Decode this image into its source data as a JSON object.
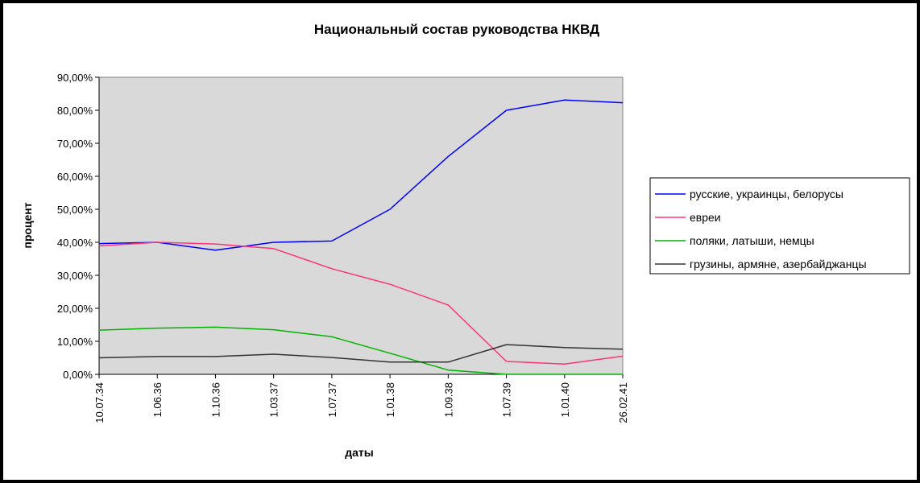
{
  "chart_data": {
    "type": "line",
    "title": "Национальный состав руководства НКВД",
    "xlabel": "даты",
    "ylabel": "процент",
    "categories": [
      "10.07.34",
      "1.06.36",
      "1.10.36",
      "1.03.37",
      "1.07.37",
      "1.01.38",
      "1.09.38",
      "1.07.39",
      "1.01.40",
      "26.02.41"
    ],
    "y_ticks": [
      "0,00%",
      "10,00%",
      "20,00%",
      "30,00%",
      "40,00%",
      "50,00%",
      "60,00%",
      "70,00%",
      "80,00%",
      "90,00%"
    ],
    "ylim": [
      0,
      90
    ],
    "y_unit": "%",
    "grid": false,
    "legend_position": "right",
    "plot_background": "#d9d9d9",
    "series": [
      {
        "name": "русские, украинцы, белорусы",
        "color": "#0000ff",
        "values": [
          39.6,
          40.0,
          37.6,
          40.0,
          40.4,
          50.0,
          66.0,
          80.0,
          83.1,
          82.3
        ]
      },
      {
        "name": "евреи",
        "color": "#ff3377",
        "values": [
          38.9,
          40.0,
          39.5,
          38.1,
          32.0,
          27.3,
          21.0,
          3.9,
          3.1,
          5.5
        ]
      },
      {
        "name": "поляки, латыши, немцы",
        "color": "#00b400",
        "values": [
          13.4,
          14.0,
          14.3,
          13.5,
          11.4,
          6.4,
          1.3,
          0.0,
          0.0,
          0.0
        ]
      },
      {
        "name": "грузины, армяне, азербайджанцы",
        "color": "#333333",
        "values": [
          5.0,
          5.4,
          5.4,
          6.1,
          5.1,
          3.7,
          3.7,
          9.0,
          8.1,
          7.6
        ]
      }
    ]
  }
}
